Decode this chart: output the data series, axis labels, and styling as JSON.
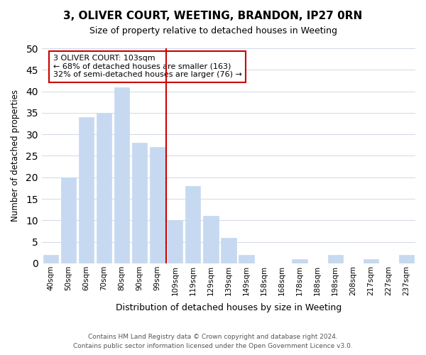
{
  "title": "3, OLIVER COURT, WEETING, BRANDON, IP27 0RN",
  "subtitle": "Size of property relative to detached houses in Weeting",
  "xlabel": "Distribution of detached houses by size in Weeting",
  "ylabel": "Number of detached properties",
  "bar_labels": [
    "40sqm",
    "50sqm",
    "60sqm",
    "70sqm",
    "80sqm",
    "90sqm",
    "99sqm",
    "109sqm",
    "119sqm",
    "129sqm",
    "139sqm",
    "149sqm",
    "158sqm",
    "168sqm",
    "178sqm",
    "188sqm",
    "198sqm",
    "208sqm",
    "217sqm",
    "227sqm",
    "237sqm"
  ],
  "bar_values": [
    2,
    20,
    34,
    35,
    41,
    28,
    27,
    10,
    18,
    11,
    6,
    2,
    0,
    0,
    1,
    0,
    2,
    0,
    1,
    0,
    2
  ],
  "bar_color": "#c6d9f0",
  "vline_x": 6.5,
  "vline_color": "#cc0000",
  "annotation_text": "3 OLIVER COURT: 103sqm\n← 68% of detached houses are smaller (163)\n32% of semi-detached houses are larger (76) →",
  "annotation_box_facecolor": "#ffffff",
  "annotation_box_edgecolor": "#cc0000",
  "ylim": [
    0,
    50
  ],
  "yticks": [
    0,
    5,
    10,
    15,
    20,
    25,
    30,
    35,
    40,
    45,
    50
  ],
  "footer_line1": "Contains HM Land Registry data © Crown copyright and database right 2024.",
  "footer_line2": "Contains public sector information licensed under the Open Government Licence v3.0.",
  "bg_color": "#ffffff",
  "grid_color": "#d0d8e8"
}
